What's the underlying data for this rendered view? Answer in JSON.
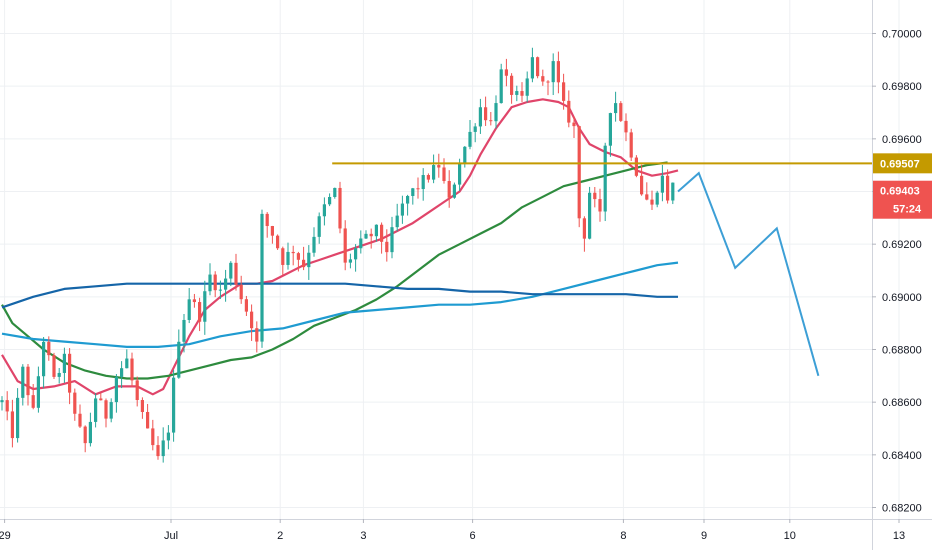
{
  "chart_data": {
    "type": "candlestick",
    "title": "",
    "xlabel": "",
    "ylabel": "",
    "ylim": [
      0.6818,
      0.7017
    ],
    "y_ticks": [
      "0.70000",
      "0.69800",
      "0.69600",
      "0.69400",
      "0.69200",
      "0.69000",
      "0.68800",
      "0.68600",
      "0.68400",
      "0.68200"
    ],
    "y_tick_values": [
      0.7,
      0.698,
      0.696,
      0.694,
      0.692,
      0.69,
      0.688,
      0.686,
      0.684,
      0.682
    ],
    "x_tick_labels": [
      "29",
      "Jul",
      "2",
      "3",
      "6",
      "8",
      "9",
      "10",
      "13"
    ],
    "x_tick_positions": [
      0.5,
      32.5,
      53.5,
      69.5,
      90.5,
      119.5,
      135,
      151.5,
      172.5
    ],
    "x_axis_note": "x in bar-index units (4h bars)",
    "grid": true,
    "colors": {
      "bull": "#26a69a",
      "bear": "#ef5350",
      "ma_red": "#e0456a",
      "ma_green": "#2e8b3e",
      "ma_blue_rising": "#1f9bd1",
      "ma_blue_flat": "#1565a8",
      "resistance": "#c49a00",
      "projection": "#3d9fd6",
      "current_price_bg": "#ef5350",
      "grid": "#eef0f3"
    },
    "horizontal_line": {
      "name": "resistance",
      "y": 0.69507,
      "x_start": 63.5,
      "x_end": 178
    },
    "price_labels": [
      {
        "text": "0.69507",
        "y": 0.69507,
        "role": "resistance-level"
      },
      {
        "text": "0.69403",
        "y": 0.69403,
        "role": "last-price"
      },
      {
        "text": "57:24",
        "role": "countdown"
      }
    ],
    "candles_path": [
      [
        0,
        0.686
      ],
      [
        2,
        0.6848
      ],
      [
        4,
        0.6872
      ],
      [
        6,
        0.6856
      ],
      [
        8,
        0.6884
      ],
      [
        10,
        0.6868
      ],
      [
        12,
        0.6876
      ],
      [
        14,
        0.6854
      ],
      [
        16,
        0.6844
      ],
      [
        18,
        0.6862
      ],
      [
        20,
        0.6855
      ],
      [
        22,
        0.687
      ],
      [
        24,
        0.6876
      ],
      [
        26,
        0.686
      ],
      [
        28,
        0.6848
      ],
      [
        30,
        0.6838
      ],
      [
        32,
        0.685
      ],
      [
        34,
        0.6885
      ],
      [
        36,
        0.69
      ],
      [
        38,
        0.6893
      ],
      [
        40,
        0.6908
      ],
      [
        42,
        0.6902
      ],
      [
        44,
        0.6912
      ],
      [
        46,
        0.69
      ],
      [
        48,
        0.689
      ],
      [
        49,
        0.6882
      ],
      [
        50,
        0.693
      ],
      [
        52,
        0.6924
      ],
      [
        54,
        0.6914
      ],
      [
        56,
        0.6918
      ],
      [
        58,
        0.6912
      ],
      [
        60,
        0.6924
      ],
      [
        62,
        0.6934
      ],
      [
        64,
        0.694
      ],
      [
        66,
        0.6912
      ],
      [
        68,
        0.6918
      ],
      [
        70,
        0.6922
      ],
      [
        72,
        0.6925
      ],
      [
        74,
        0.6918
      ],
      [
        76,
        0.693
      ],
      [
        78,
        0.6938
      ],
      [
        80,
        0.6942
      ],
      [
        82,
        0.6946
      ],
      [
        84,
        0.695
      ],
      [
        86,
        0.6936
      ],
      [
        88,
        0.6952
      ],
      [
        90,
        0.6962
      ],
      [
        92,
        0.6972
      ],
      [
        94,
        0.6966
      ],
      [
        96,
        0.6985
      ],
      [
        98,
        0.6978
      ],
      [
        100,
        0.6974
      ],
      [
        102,
        0.699
      ],
      [
        104,
        0.698
      ],
      [
        106,
        0.6988
      ],
      [
        108,
        0.6972
      ],
      [
        110,
        0.6964
      ],
      [
        111,
        0.693
      ],
      [
        112,
        0.6924
      ],
      [
        113,
        0.694
      ],
      [
        115,
        0.693
      ],
      [
        116,
        0.6958
      ],
      [
        117,
        0.6972
      ],
      [
        118,
        0.6974
      ],
      [
        120,
        0.6962
      ],
      [
        122,
        0.6948
      ],
      [
        123,
        0.694
      ],
      [
        125,
        0.6934
      ],
      [
        126,
        0.6942
      ],
      [
        127,
        0.6945
      ],
      [
        128,
        0.6938
      ],
      [
        129,
        0.6942
      ]
    ],
    "series": [
      {
        "role": "ma-fast",
        "color": "#e0456a",
        "points": [
          [
            0,
            0.6878
          ],
          [
            3,
            0.6868
          ],
          [
            6,
            0.6865
          ],
          [
            10,
            0.6866
          ],
          [
            14,
            0.6868
          ],
          [
            18,
            0.6863
          ],
          [
            22,
            0.6866
          ],
          [
            26,
            0.6866
          ],
          [
            29,
            0.6863
          ],
          [
            31,
            0.6865
          ],
          [
            33,
            0.6873
          ],
          [
            36,
            0.6885
          ],
          [
            39,
            0.6895
          ],
          [
            42,
            0.69
          ],
          [
            46,
            0.6905
          ],
          [
            49,
            0.6905
          ],
          [
            52,
            0.6906
          ],
          [
            55,
            0.6909
          ],
          [
            58,
            0.6912
          ],
          [
            61,
            0.6914
          ],
          [
            64,
            0.6916
          ],
          [
            67,
            0.6918
          ],
          [
            70,
            0.692
          ],
          [
            73,
            0.6922
          ],
          [
            76,
            0.6925
          ],
          [
            79,
            0.6928
          ],
          [
            82,
            0.6932
          ],
          [
            85,
            0.6936
          ],
          [
            88,
            0.694
          ],
          [
            90,
            0.6946
          ],
          [
            92,
            0.6954
          ],
          [
            95,
            0.6964
          ],
          [
            98,
            0.6972
          ],
          [
            101,
            0.6974
          ],
          [
            104,
            0.6975
          ],
          [
            107,
            0.6974
          ],
          [
            109,
            0.6972
          ],
          [
            111,
            0.6964
          ],
          [
            113,
            0.6958
          ],
          [
            116,
            0.6955
          ],
          [
            119,
            0.6953
          ],
          [
            122,
            0.6948
          ],
          [
            125,
            0.6946
          ],
          [
            128,
            0.6947
          ],
          [
            130,
            0.6948
          ]
        ]
      },
      {
        "role": "ma-mid",
        "color": "#2e8b3e",
        "points": [
          [
            0,
            0.6897
          ],
          [
            2,
            0.689
          ],
          [
            5,
            0.6885
          ],
          [
            8,
            0.688
          ],
          [
            12,
            0.6875
          ],
          [
            16,
            0.6872
          ],
          [
            20,
            0.687
          ],
          [
            24,
            0.6869
          ],
          [
            28,
            0.6869
          ],
          [
            32,
            0.687
          ],
          [
            36,
            0.6872
          ],
          [
            40,
            0.6874
          ],
          [
            44,
            0.6876
          ],
          [
            48,
            0.6877
          ],
          [
            52,
            0.688
          ],
          [
            56,
            0.6884
          ],
          [
            60,
            0.6889
          ],
          [
            64,
            0.6892
          ],
          [
            68,
            0.6895
          ],
          [
            72,
            0.6899
          ],
          [
            76,
            0.6904
          ],
          [
            80,
            0.691
          ],
          [
            84,
            0.6916
          ],
          [
            88,
            0.692
          ],
          [
            92,
            0.6924
          ],
          [
            96,
            0.6928
          ],
          [
            100,
            0.6934
          ],
          [
            104,
            0.6938
          ],
          [
            108,
            0.6942
          ],
          [
            112,
            0.6944
          ],
          [
            116,
            0.6946
          ],
          [
            120,
            0.6948
          ],
          [
            124,
            0.695
          ],
          [
            128,
            0.6951
          ]
        ]
      },
      {
        "role": "ma-slow-rising",
        "color": "#1f9bd1",
        "points": [
          [
            0,
            0.6886
          ],
          [
            6,
            0.6884
          ],
          [
            12,
            0.6883
          ],
          [
            18,
            0.6882
          ],
          [
            24,
            0.6881
          ],
          [
            30,
            0.6881
          ],
          [
            36,
            0.6882
          ],
          [
            42,
            0.6885
          ],
          [
            48,
            0.6887
          ],
          [
            54,
            0.6888
          ],
          [
            60,
            0.6891
          ],
          [
            66,
            0.6894
          ],
          [
            72,
            0.6895
          ],
          [
            78,
            0.6896
          ],
          [
            84,
            0.6897
          ],
          [
            90,
            0.6897
          ],
          [
            96,
            0.6898
          ],
          [
            102,
            0.69
          ],
          [
            108,
            0.6903
          ],
          [
            114,
            0.6906
          ],
          [
            120,
            0.6909
          ],
          [
            126,
            0.6912
          ],
          [
            130,
            0.6913
          ]
        ]
      },
      {
        "role": "ma-slow-flat",
        "color": "#1565a8",
        "points": [
          [
            0,
            0.6896
          ],
          [
            6,
            0.69
          ],
          [
            12,
            0.6903
          ],
          [
            18,
            0.6904
          ],
          [
            24,
            0.6905
          ],
          [
            30,
            0.6905
          ],
          [
            36,
            0.6905
          ],
          [
            42,
            0.6905
          ],
          [
            48,
            0.6905
          ],
          [
            54,
            0.6905
          ],
          [
            60,
            0.6905
          ],
          [
            66,
            0.6905
          ],
          [
            72,
            0.6904
          ],
          [
            78,
            0.6903
          ],
          [
            84,
            0.6903
          ],
          [
            90,
            0.6902
          ],
          [
            96,
            0.6902
          ],
          [
            102,
            0.6901
          ],
          [
            108,
            0.6901
          ],
          [
            114,
            0.6901
          ],
          [
            120,
            0.6901
          ],
          [
            126,
            0.69
          ],
          [
            130,
            0.69
          ]
        ]
      }
    ],
    "projection": [
      [
        130,
        0.694
      ],
      [
        134,
        0.6947
      ],
      [
        141,
        0.6911
      ],
      [
        149,
        0.6926
      ],
      [
        157,
        0.687
      ]
    ]
  }
}
